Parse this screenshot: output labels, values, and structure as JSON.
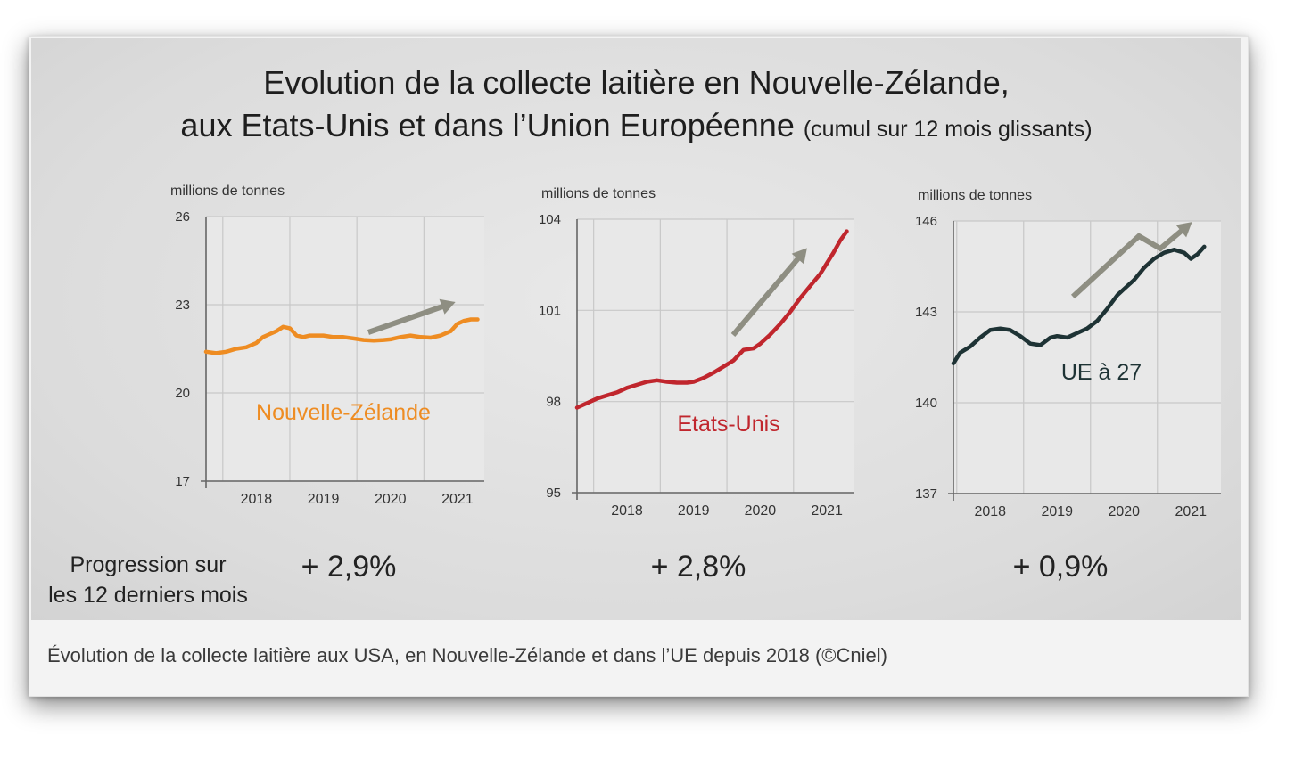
{
  "slide": {
    "title_line1": "Evolution de la collecte laitière en Nouvelle-Zélande,",
    "title_line2": "aux Etats-Unis et dans l’Union Européenne",
    "title_sub": "(cumul sur 12 mois glissants)"
  },
  "progression": {
    "label_line1": "Progression sur",
    "label_line2": "les 12 derniers mois"
  },
  "caption": "Évolution de la collecte laitière aux USA, en Nouvelle-Zélande et dans l’UE depuis 2018 (©Cniel)",
  "chart_data": [
    {
      "type": "line",
      "key": "nz",
      "ylabel": "millions de tonnes",
      "ylim": [
        17,
        26
      ],
      "yticks": [
        17,
        20,
        23,
        26
      ],
      "xticks": [
        "2018",
        "2019",
        "2020",
        "2021"
      ],
      "xlim": [
        2017.25,
        2021.4
      ],
      "grid": true,
      "series_name": "Nouvelle-Zélande",
      "color": "#ee8c22",
      "arrow_color": "#8e8e82",
      "progression": "+ 2,9%",
      "x": [
        2017.25,
        2017.4,
        2017.55,
        2017.7,
        2017.85,
        2018.0,
        2018.1,
        2018.2,
        2018.3,
        2018.4,
        2018.5,
        2018.6,
        2018.7,
        2018.8,
        2018.9,
        2019.0,
        2019.15,
        2019.3,
        2019.45,
        2019.6,
        2019.75,
        2019.9,
        2020.0,
        2020.15,
        2020.3,
        2020.45,
        2020.6,
        2020.75,
        2020.9,
        2021.0,
        2021.1,
        2021.2,
        2021.3
      ],
      "values": [
        21.4,
        21.35,
        21.4,
        21.5,
        21.55,
        21.7,
        21.9,
        22.0,
        22.1,
        22.25,
        22.2,
        21.95,
        21.9,
        21.95,
        21.95,
        21.95,
        21.9,
        21.9,
        21.85,
        21.8,
        21.78,
        21.8,
        21.82,
        21.9,
        21.95,
        21.9,
        21.88,
        21.95,
        22.1,
        22.35,
        22.45,
        22.5,
        22.5
      ]
    },
    {
      "type": "line",
      "key": "us",
      "ylabel": "millions de tonnes",
      "ylim": [
        95,
        104
      ],
      "yticks": [
        95,
        98,
        101,
        104
      ],
      "xticks": [
        "2018",
        "2019",
        "2020",
        "2021"
      ],
      "xlim": [
        2017.25,
        2021.4
      ],
      "grid": true,
      "series_name": "Etats-Unis",
      "color": "#c0262d",
      "arrow_color": "#8e8e82",
      "progression": "+ 2,8%",
      "x": [
        2017.25,
        2017.4,
        2017.55,
        2017.7,
        2017.85,
        2018.0,
        2018.15,
        2018.3,
        2018.45,
        2018.6,
        2018.75,
        2018.9,
        2019.0,
        2019.15,
        2019.3,
        2019.45,
        2019.6,
        2019.75,
        2019.9,
        2020.0,
        2020.15,
        2020.3,
        2020.45,
        2020.6,
        2020.75,
        2020.9,
        2021.0,
        2021.1,
        2021.2,
        2021.3
      ],
      "values": [
        97.8,
        97.95,
        98.1,
        98.2,
        98.3,
        98.45,
        98.55,
        98.65,
        98.7,
        98.65,
        98.62,
        98.62,
        98.65,
        98.78,
        98.95,
        99.15,
        99.35,
        99.7,
        99.75,
        99.9,
        100.2,
        100.55,
        100.95,
        101.4,
        101.8,
        102.2,
        102.55,
        102.9,
        103.3,
        103.6
      ]
    },
    {
      "type": "line",
      "key": "eu",
      "ylabel": "millions de tonnes",
      "ylim": [
        137,
        146
      ],
      "yticks": [
        137,
        140,
        143,
        146
      ],
      "xticks": [
        "2018",
        "2019",
        "2020",
        "2021"
      ],
      "xlim": [
        2017.45,
        2021.45
      ],
      "grid": true,
      "series_name": "UE à 27",
      "color": "#1e3335",
      "arrow_color": "#8e8e82",
      "progression": "+ 0,9%",
      "x": [
        2017.45,
        2017.55,
        2017.7,
        2017.85,
        2018.0,
        2018.15,
        2018.3,
        2018.45,
        2018.6,
        2018.75,
        2018.9,
        2019.0,
        2019.15,
        2019.3,
        2019.45,
        2019.6,
        2019.75,
        2019.9,
        2020.0,
        2020.15,
        2020.3,
        2020.45,
        2020.6,
        2020.75,
        2020.9,
        2021.0,
        2021.1,
        2021.2
      ],
      "values": [
        141.3,
        141.65,
        141.85,
        142.15,
        142.4,
        142.45,
        142.4,
        142.2,
        141.95,
        141.9,
        142.15,
        142.2,
        142.15,
        142.3,
        142.45,
        142.7,
        143.1,
        143.55,
        143.75,
        144.05,
        144.45,
        144.75,
        144.95,
        145.05,
        144.95,
        144.75,
        144.9,
        145.15
      ]
    }
  ]
}
